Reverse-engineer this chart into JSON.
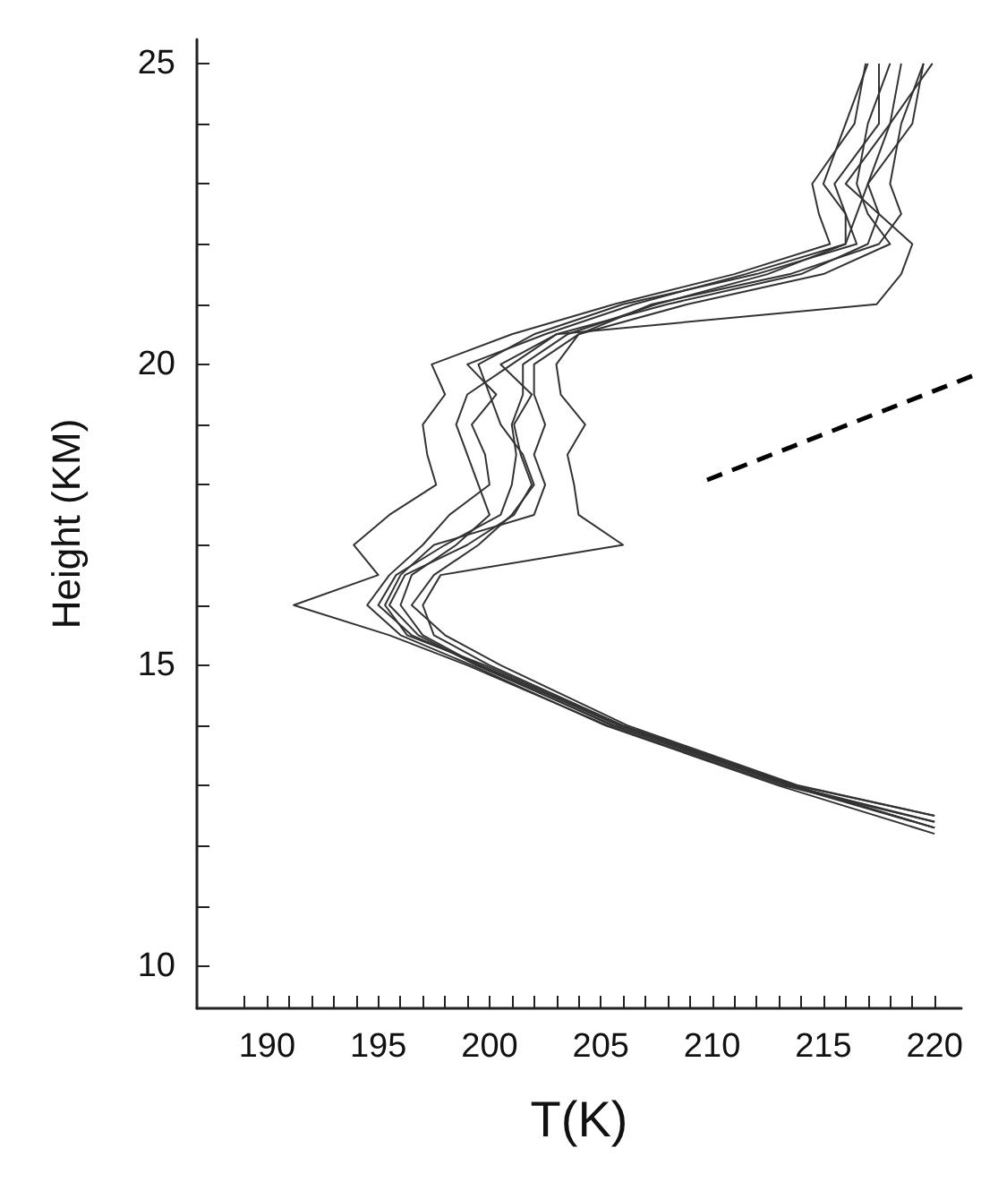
{
  "chart_data": {
    "type": "line",
    "xlabel": "T(K)",
    "ylabel": "Height (KM)",
    "xlim": [
      186.85,
      221.2
    ],
    "ylim": [
      9.3,
      25.4
    ],
    "xticks": [
      {
        "value": 189,
        "label": null
      },
      190,
      {
        "value": 191,
        "label": null
      },
      {
        "value": 192,
        "label": null
      },
      {
        "value": 193,
        "label": null
      },
      {
        "value": 194,
        "label": null
      },
      195,
      {
        "value": 196,
        "label": null
      },
      {
        "value": 197,
        "label": null
      },
      {
        "value": 198,
        "label": null
      },
      {
        "value": 199,
        "label": null
      },
      200,
      {
        "value": 201,
        "label": null
      },
      {
        "value": 202,
        "label": null
      },
      {
        "value": 203,
        "label": null
      },
      {
        "value": 204,
        "label": null
      },
      205,
      {
        "value": 206,
        "label": null
      },
      {
        "value": 207,
        "label": null
      },
      {
        "value": 208,
        "label": null
      },
      {
        "value": 209,
        "label": null
      },
      210,
      {
        "value": 211,
        "label": null
      },
      {
        "value": 212,
        "label": null
      },
      {
        "value": 213,
        "label": null
      },
      {
        "value": 214,
        "label": null
      },
      215,
      {
        "value": 216,
        "label": null
      },
      {
        "value": 217,
        "label": null
      },
      {
        "value": 218,
        "label": null
      },
      {
        "value": 219,
        "label": null
      },
      220
    ],
    "yticks": [
      10,
      {
        "value": 11,
        "label": null
      },
      {
        "value": 12,
        "label": null
      },
      {
        "value": 13,
        "label": null
      },
      {
        "value": 14,
        "label": null
      },
      15,
      {
        "value": 16,
        "label": null
      },
      {
        "value": 17,
        "label": null
      },
      {
        "value": 18,
        "label": null
      },
      {
        "value": 19,
        "label": null
      },
      20,
      {
        "value": 21,
        "label": null
      },
      {
        "value": 22,
        "label": null
      },
      {
        "value": 23,
        "label": null
      },
      {
        "value": 24,
        "label": null
      },
      25
    ],
    "grid": false,
    "marker": "none",
    "line_style": "solid",
    "series": [
      {
        "color": "#333333",
        "x": [
          220,
          213.6,
          205.8,
          199.6,
          196.5,
          195.0,
          195.8,
          198.0,
          200.5,
          201.0,
          201.2,
          201.0,
          201.5,
          201.5,
          203.5,
          207.5,
          212.5,
          216.0,
          216.5,
          217.0,
          218.0,
          218.5
        ],
        "values": [
          12.3,
          13,
          14,
          15,
          15.5,
          16,
          16.5,
          17,
          17.5,
          18,
          18.5,
          19,
          19.5,
          20,
          20.5,
          21,
          21.5,
          22,
          22.5,
          23,
          24,
          25
        ]
      },
      {
        "color": "#333333",
        "x": [
          220,
          213.2,
          205.3,
          199.0,
          195.5,
          191.2,
          195.0,
          193.9,
          195.5,
          197.6,
          197.2,
          197.0,
          198.0,
          197.4,
          201.0,
          205.6,
          211.0,
          215.3,
          214.8,
          214.5,
          216.4,
          216.9
        ],
        "values": [
          12.4,
          13,
          14,
          15,
          15.5,
          16,
          16.5,
          17,
          17.5,
          18,
          18.5,
          19,
          19.5,
          20,
          20.5,
          21,
          21.5,
          22,
          22.5,
          23,
          24,
          25
        ]
      },
      {
        "color": "#333333",
        "x": [
          220,
          213.8,
          206.0,
          200.0,
          197.5,
          197.0,
          197.8,
          206.0,
          204.0,
          203.8,
          203.5,
          204.3,
          203.2,
          203.0,
          204.0,
          207.3,
          213.5,
          217.5,
          218.5,
          218.0,
          218.5,
          219.5
        ],
        "values": [
          12.5,
          13,
          14,
          15,
          15.5,
          16,
          16.5,
          17,
          17.5,
          18,
          18.5,
          19,
          19.5,
          20,
          20.5,
          21,
          21.5,
          22,
          22.5,
          23,
          24,
          25
        ]
      },
      {
        "color": "#333333",
        "x": [
          220,
          213.0,
          205.2,
          199.2,
          196.0,
          194.5,
          195.5,
          197.0,
          198.2,
          200.0,
          199.8,
          199.2,
          200.3,
          199.0,
          202.5,
          206.5,
          211.5,
          216.0,
          216.0,
          215.5,
          217.5,
          217.5
        ],
        "values": [
          12.2,
          13,
          14,
          15,
          15.5,
          16,
          16.5,
          17,
          17.5,
          18,
          18.5,
          19,
          19.5,
          20,
          20.5,
          21,
          21.5,
          22,
          22.5,
          23,
          24,
          25
        ]
      },
      {
        "color": "#333333",
        "x": [
          220,
          213.4,
          205.6,
          199.4,
          196.8,
          195.5,
          196.2,
          199.0,
          201.1,
          201.9,
          201.4,
          201.1,
          201.9,
          200.5,
          203.0,
          217.4,
          218.5,
          219.0,
          217.5,
          216.0,
          218.0,
          219.9
        ],
        "values": [
          12.3,
          13,
          14,
          15,
          15.5,
          16,
          16.5,
          17,
          17.5,
          18,
          18.5,
          19,
          19.5,
          20,
          20.5,
          21,
          21.5,
          22,
          22.5,
          23,
          24,
          25
        ]
      },
      {
        "color": "#333333",
        "x": [
          220,
          213.5,
          205.5,
          199.5,
          197.0,
          196.0,
          196.5,
          198.5,
          200.0,
          199.5,
          199.0,
          198.5,
          199.0,
          201.0,
          203.0,
          208.0,
          214.0,
          217.0,
          217.5,
          217.0,
          219.0,
          219.5
        ],
        "values": [
          12.4,
          13,
          14,
          15,
          15.5,
          16,
          16.5,
          17,
          17.5,
          18,
          18.5,
          19,
          19.5,
          20,
          20.5,
          21,
          21.5,
          22,
          22.5,
          23,
          24,
          25
        ]
      },
      {
        "color": "#333333",
        "x": [
          220,
          213.7,
          205.9,
          199.8,
          196.3,
          195.3,
          196.0,
          197.5,
          202.0,
          202.5,
          202.0,
          202.5,
          202.0,
          202.0,
          204.0,
          208.9,
          215.0,
          218.0,
          217.0,
          216.5,
          217.0,
          218.0
        ],
        "values": [
          12.3,
          13,
          14,
          15,
          15.5,
          16,
          16.5,
          17,
          17.5,
          18,
          18.5,
          19,
          19.5,
          20,
          20.5,
          21,
          21.5,
          22,
          22.5,
          23,
          24,
          25
        ]
      },
      {
        "color": "#333333",
        "x": [
          220,
          213.9,
          206.2,
          200.5,
          198.0,
          196.5,
          197.5,
          199.5,
          201.0,
          202.0,
          201.5,
          200.5,
          200.0,
          199.5,
          202.0,
          206.0,
          212.0,
          216.5,
          216.0,
          215.0,
          216.0,
          217.0
        ],
        "values": [
          12.5,
          13,
          14,
          15,
          15.5,
          16,
          16.5,
          17,
          17.5,
          18,
          18.5,
          19,
          19.5,
          20,
          20.5,
          21,
          21.5,
          22,
          22.5,
          23,
          24,
          25
        ]
      }
    ]
  }
}
